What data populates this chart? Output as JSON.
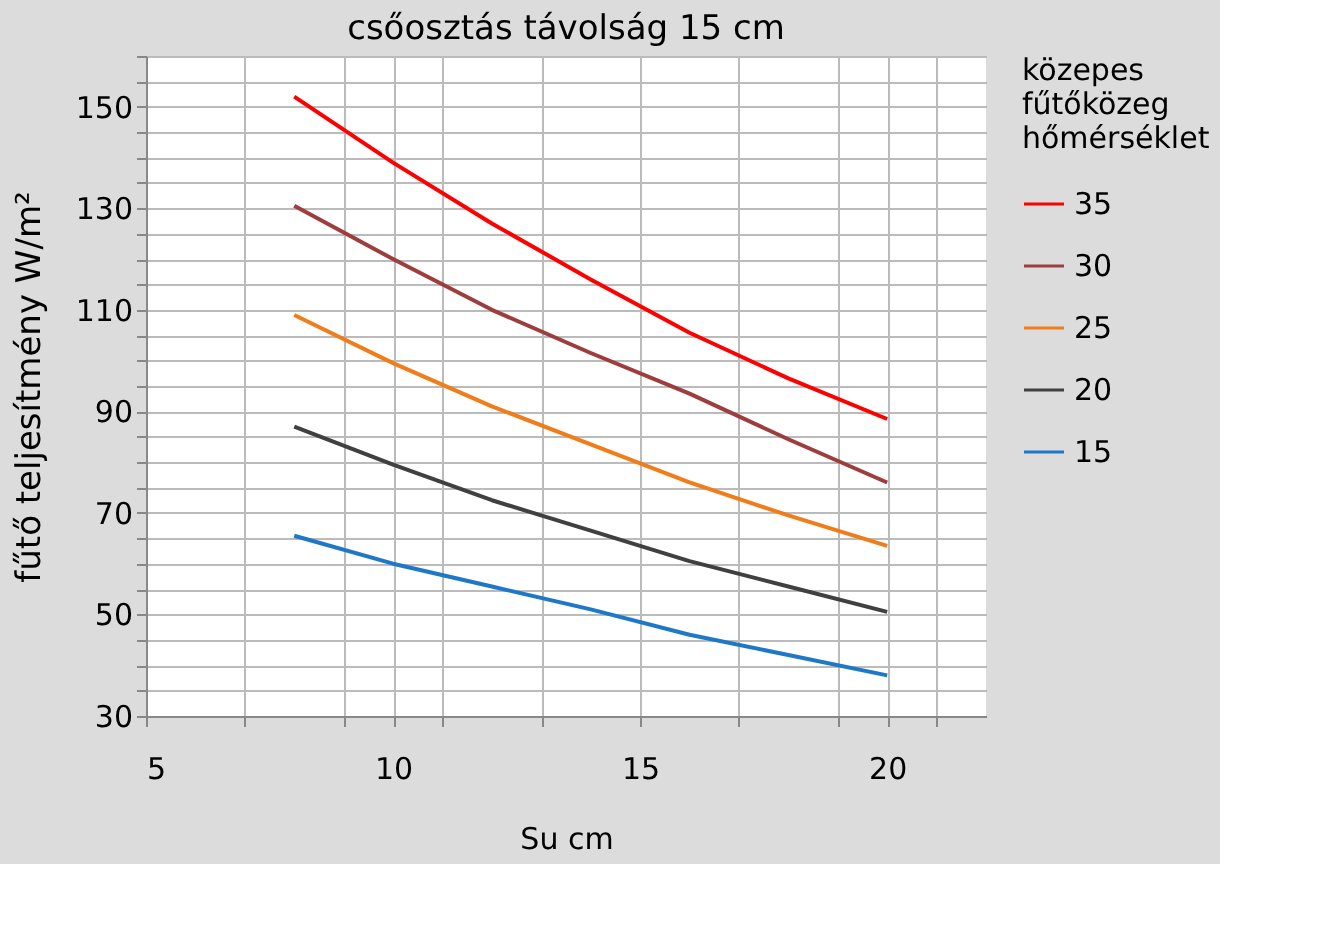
{
  "chart_data": {
    "type": "line",
    "title": "csőosztás távolság 15 cm",
    "xlabel": "Su  cm",
    "ylabel": "fűtő teljesítmény W/m²",
    "legend_title": "közepes\nfűtőközeg\nhőmérséklet",
    "x": [
      8,
      10,
      12,
      14,
      16,
      18,
      20
    ],
    "series": [
      {
        "name": "35",
        "color": "#ff0000",
        "values": [
          152,
          139,
          127,
          116,
          105.5,
          96.5,
          88.5
        ]
      },
      {
        "name": "30",
        "color": "#9e3d3d",
        "values": [
          130.5,
          120,
          110,
          101.5,
          93.5,
          84.5,
          76
        ]
      },
      {
        "name": "25",
        "color": "#f07d1a",
        "values": [
          109,
          99.5,
          91,
          83.5,
          76,
          69.5,
          63.5
        ]
      },
      {
        "name": "20",
        "color": "#404040",
        "values": [
          87,
          79.5,
          72.5,
          66.5,
          60.5,
          55.5,
          50.5
        ]
      },
      {
        "name": "15",
        "color": "#1f77c8",
        "values": [
          65.5,
          60,
          55.5,
          51,
          46,
          42,
          38
        ]
      }
    ],
    "xlim": [
      5,
      22
    ],
    "xticks": [
      5,
      {
        "value": 7,
        "label": null
      },
      {
        "value": 9,
        "label": null
      },
      10,
      {
        "value": 11,
        "label": null
      },
      {
        "value": 13,
        "label": null
      },
      15,
      {
        "value": 17,
        "label": null
      },
      {
        "value": 19,
        "label": null
      },
      20,
      {
        "value": 21,
        "label": null
      }
    ],
    "ylim": [
      30,
      160
    ],
    "yticks": [
      30,
      {
        "value": 35,
        "label": null
      },
      {
        "value": 40,
        "label": null
      },
      {
        "value": 45,
        "label": null
      },
      50,
      {
        "value": 55,
        "label": null
      },
      {
        "value": 60,
        "label": null
      },
      {
        "value": 65,
        "label": null
      },
      70,
      {
        "value": 75,
        "label": null
      },
      {
        "value": 80,
        "label": null
      },
      {
        "value": 85,
        "label": null
      },
      90,
      {
        "value": 95,
        "label": null
      },
      {
        "value": 100,
        "label": null
      },
      {
        "value": 105,
        "label": null
      },
      110,
      {
        "value": 115,
        "label": null
      },
      {
        "value": 120,
        "label": null
      },
      {
        "value": 125,
        "label": null
      },
      130,
      {
        "value": 135,
        "label": null
      },
      {
        "value": 140,
        "label": null
      },
      {
        "value": 145,
        "label": null
      },
      150,
      {
        "value": 155,
        "label": null
      },
      {
        "value": 160,
        "label": null
      }
    ],
    "grid": true,
    "legend": "right",
    "line_style": "solid",
    "marker": "none"
  }
}
